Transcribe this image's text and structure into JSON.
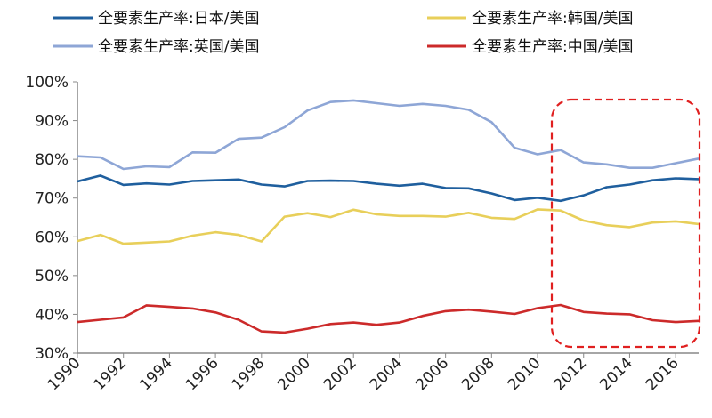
{
  "chart_data": {
    "type": "line",
    "title": "",
    "xlabel": "",
    "ylabel": "",
    "x": [
      1990,
      1991,
      1992,
      1993,
      1994,
      1995,
      1996,
      1997,
      1998,
      1999,
      2000,
      2001,
      2002,
      2003,
      2004,
      2005,
      2006,
      2007,
      2008,
      2009,
      2010,
      2011,
      2012,
      2013,
      2014,
      2015,
      2016,
      2017
    ],
    "x_tick_labels": [
      "1990",
      "1992",
      "1994",
      "1996",
      "1998",
      "2000",
      "2002",
      "2004",
      "2006",
      "2008",
      "2010",
      "2012",
      "2014",
      "2016"
    ],
    "ylim": [
      30,
      100
    ],
    "y_tick_labels": [
      "30%",
      "40%",
      "50%",
      "60%",
      "70%",
      "80%",
      "90%",
      "100%"
    ],
    "grid": false,
    "legend_placement": "top",
    "series": [
      {
        "name": "全要素生产率:日本/美国",
        "color": "#1f5f9e",
        "values": [
          74.3,
          75.8,
          73.4,
          73.8,
          73.5,
          74.4,
          74.6,
          74.8,
          73.5,
          73.0,
          74.4,
          74.5,
          74.4,
          73.7,
          73.2,
          73.7,
          72.6,
          72.5,
          71.2,
          69.5,
          70.1,
          69.3,
          70.7,
          72.8,
          73.5,
          74.6,
          75.1,
          74.9
        ]
      },
      {
        "name": "全要素生产率:韩国/美国",
        "color": "#e8cf5a",
        "values": [
          58.9,
          60.5,
          58.2,
          58.5,
          58.8,
          60.3,
          61.2,
          60.5,
          58.8,
          65.2,
          66.1,
          65.1,
          67.0,
          65.8,
          65.4,
          65.4,
          65.2,
          66.2,
          64.9,
          64.6,
          67.1,
          66.8,
          64.2,
          63.0,
          62.5,
          63.7,
          64.0,
          63.3
        ]
      },
      {
        "name": "全要素生产率:英国/美国",
        "color": "#8ea6d6",
        "values": [
          80.8,
          80.5,
          77.5,
          78.2,
          78.0,
          81.8,
          81.7,
          85.3,
          85.6,
          88.3,
          92.6,
          94.8,
          95.2,
          94.5,
          93.8,
          94.3,
          93.8,
          92.8,
          89.6,
          83.0,
          81.3,
          82.4,
          79.2,
          78.7,
          77.8,
          77.8,
          79.0,
          80.2
        ]
      },
      {
        "name": "全要素生产率:中国/美国",
        "color": "#cc2a2a",
        "values": [
          38.0,
          38.6,
          39.2,
          42.3,
          41.9,
          41.5,
          40.5,
          38.6,
          35.6,
          35.3,
          36.3,
          37.5,
          37.9,
          37.3,
          37.9,
          39.6,
          40.8,
          41.2,
          40.7,
          40.1,
          41.6,
          42.4,
          40.6,
          40.2,
          40.0,
          38.5,
          38.0,
          38.3
        ]
      }
    ],
    "annotations": [
      {
        "type": "dashed-box",
        "x_range": [
          2011,
          2017
        ],
        "color": "#e02020"
      }
    ]
  }
}
